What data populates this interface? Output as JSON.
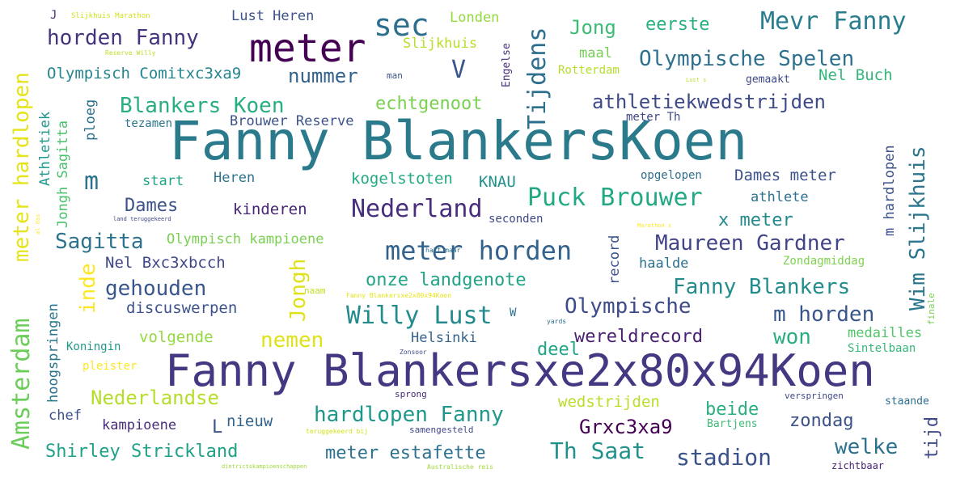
{
  "words": [
    {
      "text": "Fanny BlankersKoen",
      "color": "#2a7a8c"
    },
    {
      "text": "Fanny Blankersxe2x80x94Koen",
      "color": "#453781"
    },
    {
      "text": "meter",
      "color": "#440154"
    },
    {
      "text": "sec",
      "color": "#2d708e"
    },
    {
      "text": "Mevr Fanny",
      "color": "#287d8e"
    },
    {
      "text": "horden Fanny",
      "color": "#46337e"
    },
    {
      "text": "Jong",
      "color": "#3cbb75"
    },
    {
      "text": "eerste",
      "color": "#2ab07f"
    },
    {
      "text": "Olympische Spelen",
      "color": "#2d718e"
    },
    {
      "text": "Lust Heren",
      "color": "#3b528b"
    },
    {
      "text": "Londen",
      "color": "#95d840"
    },
    {
      "text": "Slijkhuis",
      "color": "#b8de29"
    },
    {
      "text": "Slijkhuis Marathon",
      "color": "#d2e21b"
    },
    {
      "text": "Olympisch Comitxc3xa9",
      "color": "#25858e"
    },
    {
      "text": "nummer",
      "color": "#33638d"
    },
    {
      "text": "V",
      "color": "#39568c"
    },
    {
      "text": "Tijdens",
      "color": "#2d708e"
    },
    {
      "text": "maal",
      "color": "#75d054"
    },
    {
      "text": "Rotterdam",
      "color": "#b5de2b"
    },
    {
      "text": "gemaakt",
      "color": "#3f4889"
    },
    {
      "text": "Nel Buch",
      "color": "#35b779"
    },
    {
      "text": "Blankers Koen",
      "color": "#29af7f"
    },
    {
      "text": "echtgenoot",
      "color": "#7ad151"
    },
    {
      "text": "athletiekwedstrijden",
      "color": "#3e4a89"
    },
    {
      "text": "Wim Slijkhuis",
      "color": "#2a768e"
    },
    {
      "text": "meter hardlopen",
      "color": "#e5e419"
    },
    {
      "text": "Athletiek",
      "color": "#1f988b"
    },
    {
      "text": "Jongh Sagitta",
      "color": "#4ac16d"
    },
    {
      "text": "ploeg",
      "color": "#2c728e"
    },
    {
      "text": "m",
      "color": "#2c728e"
    },
    {
      "text": "tezamen",
      "color": "#2b758e"
    },
    {
      "text": "Brouwer Reserve",
      "color": "#3b528b"
    },
    {
      "text": "meter Th",
      "color": "#3f4788"
    },
    {
      "text": "start",
      "color": "#20a386"
    },
    {
      "text": "Heren",
      "color": "#2c738e"
    },
    {
      "text": "kogelstoten",
      "color": "#23a983"
    },
    {
      "text": "KNAU",
      "color": "#21908d"
    },
    {
      "text": "opgelopen",
      "color": "#2e6e8e"
    },
    {
      "text": "Dames meter",
      "color": "#3b528b"
    },
    {
      "text": "Puck Brouwer",
      "color": "#22a884"
    },
    {
      "text": "athlete",
      "color": "#2c728e"
    },
    {
      "text": "m hardlopen",
      "color": "#3b528b"
    },
    {
      "text": "Dames",
      "color": "#3b528b"
    },
    {
      "text": "kinderen",
      "color": "#482475"
    },
    {
      "text": "Nederland",
      "color": "#472d7b"
    },
    {
      "text": "seconden",
      "color": "#3e4989"
    },
    {
      "text": "x meter",
      "color": "#238a8d"
    },
    {
      "text": "Sagitta",
      "color": "#2c728e"
    },
    {
      "text": "Olympisch kampioene",
      "color": "#7ad151"
    },
    {
      "text": "meter horden",
      "color": "#33638d"
    },
    {
      "text": "Maureen Gardner",
      "color": "#414487"
    },
    {
      "text": "record",
      "color": "#3b528b"
    },
    {
      "text": "Zondagmiddag",
      "color": "#7fd34e"
    },
    {
      "text": "Nel Bxc3xbcch",
      "color": "#3f4788"
    },
    {
      "text": "haalde",
      "color": "#2c728e"
    },
    {
      "text": "gehouden",
      "color": "#39568c"
    },
    {
      "text": "Jongh",
      "color": "#dde318"
    },
    {
      "text": "inde",
      "color": "#fde725"
    },
    {
      "text": "onze landgenote",
      "color": "#20a386"
    },
    {
      "text": "Fanny Blankers",
      "color": "#228c8d"
    },
    {
      "text": "hoogspringen",
      "color": "#2a768e"
    },
    {
      "text": "discuswerpen",
      "color": "#3b528b"
    },
    {
      "text": "Willy Lust",
      "color": "#238a8d"
    },
    {
      "text": "Olympische",
      "color": "#3e4a89"
    },
    {
      "text": "m horden",
      "color": "#39568c"
    },
    {
      "text": "Amsterdam",
      "color": "#6ccd5a"
    },
    {
      "text": "nemen",
      "color": "#dde318"
    },
    {
      "text": "wereldrecord",
      "color": "#481f70"
    },
    {
      "text": "won",
      "color": "#28ae80"
    },
    {
      "text": "Koningin",
      "color": "#1f998a"
    },
    {
      "text": "volgende",
      "color": "#95d840"
    },
    {
      "text": "Helsinki",
      "color": "#33638d"
    },
    {
      "text": "deel",
      "color": "#21a585"
    },
    {
      "text": "medailles",
      "color": "#52c569"
    },
    {
      "text": "Sintelbaan",
      "color": "#35b779"
    },
    {
      "text": "finale",
      "color": "#7ad151"
    },
    {
      "text": "pleister",
      "color": "#fde725"
    },
    {
      "text": "Nederlandse",
      "color": "#b5de2b"
    },
    {
      "text": "sprong",
      "color": "#482878"
    },
    {
      "text": "wedstrijden",
      "color": "#b8de29"
    },
    {
      "text": "verspringen",
      "color": "#3f4889"
    },
    {
      "text": "staande",
      "color": "#2d708e"
    },
    {
      "text": "beide",
      "color": "#2ab07f"
    },
    {
      "text": "hardlopen Fanny",
      "color": "#1f988b"
    },
    {
      "text": "chef",
      "color": "#3b528b"
    },
    {
      "text": "nieuw",
      "color": "#33638d"
    },
    {
      "text": "kampioene",
      "color": "#472d7b"
    },
    {
      "text": "L",
      "color": "#3b528b"
    },
    {
      "text": "Grxc3xa9",
      "color": "#440154"
    },
    {
      "text": "zondag",
      "color": "#3b528b"
    },
    {
      "text": "tijd",
      "color": "#3e4a89"
    },
    {
      "text": "Bartjens",
      "color": "#3cbb75"
    },
    {
      "text": "samengesteld",
      "color": "#3f4889"
    },
    {
      "text": "Shirley Strickland",
      "color": "#1fa188"
    },
    {
      "text": "meter estafette",
      "color": "#2d718e"
    },
    {
      "text": "Th Saat",
      "color": "#21918c"
    },
    {
      "text": "welke",
      "color": "#2c728e"
    },
    {
      "text": "stadion",
      "color": "#3b528b"
    },
    {
      "text": "zichtbaar",
      "color": "#482475"
    },
    {
      "text": "Reserve Willy",
      "color": "#bddf26"
    },
    {
      "text": "man",
      "color": "#3b528b"
    },
    {
      "text": "Engelse",
      "color": "#472d7b"
    },
    {
      "text": "J",
      "color": "#472d7b"
    },
    {
      "text": "W",
      "color": "#2c728e"
    },
    {
      "text": "naam",
      "color": "#c2df23"
    },
    {
      "text": "Fanny Blankersxe2x80x94Koen",
      "color": "#e5e419"
    },
    {
      "text": "halt maar",
      "color": "#2d708e"
    },
    {
      "text": "Marathon s",
      "color": "#fde725"
    },
    {
      "text": "land teruggekeerd",
      "color": "#3f4889"
    },
    {
      "text": "yards",
      "color": "#2c728e"
    },
    {
      "text": "teruggekeerd bij",
      "color": "#d2e21b"
    },
    {
      "text": "Australische reis",
      "color": "#a0da39"
    },
    {
      "text": "dintrictskampioenschappen",
      "color": "#a0da39"
    },
    {
      "text": "Zonsoor",
      "color": "#3f4889"
    },
    {
      "text": "Lust s",
      "color": "#b5de2b"
    },
    {
      "text": "al das",
      "color": "#fde725"
    }
  ]
}
